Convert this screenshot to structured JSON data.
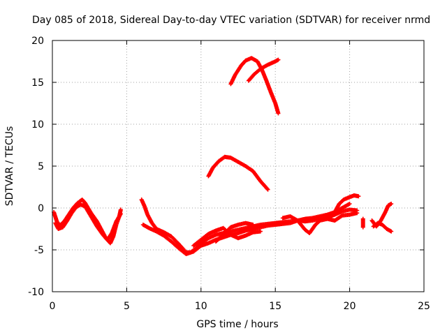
{
  "chart_data": {
    "type": "scatter",
    "title": "Day 085 of 2018, Sidereal Day-to-day VTEC variation (SDTVAR) for receiver nrmd",
    "xlabel": "GPS time / hours",
    "ylabel": "SDTVAR / TECUs",
    "xlim": [
      0,
      25
    ],
    "ylim": [
      -10,
      20
    ],
    "xticks": [
      0,
      5,
      10,
      15,
      20,
      25
    ],
    "yticks": [
      -10,
      -5,
      0,
      5,
      10,
      15,
      20
    ],
    "grid": true,
    "marker": "plus",
    "color": "#ff0000",
    "segments": [
      {
        "points": [
          [
            0.1,
            -0.5
          ],
          [
            0.3,
            -1.6
          ],
          [
            0.5,
            -2.1
          ],
          [
            0.8,
            -1.6
          ],
          [
            1.1,
            -0.8
          ],
          [
            1.4,
            0.0
          ],
          [
            1.7,
            0.6
          ],
          [
            2.0,
            1.0
          ],
          [
            2.2,
            0.6
          ],
          [
            2.6,
            -0.6
          ],
          [
            3.0,
            -1.6
          ],
          [
            3.3,
            -2.6
          ],
          [
            3.6,
            -3.6
          ],
          [
            3.9,
            -4.2
          ],
          [
            4.1,
            -3.4
          ],
          [
            4.3,
            -2.0
          ],
          [
            4.5,
            -1.0
          ],
          [
            4.6,
            -0.2
          ]
        ]
      },
      {
        "points": [
          [
            0.2,
            -1.8
          ],
          [
            0.4,
            -2.5
          ],
          [
            0.7,
            -2.3
          ],
          [
            1.0,
            -1.5
          ],
          [
            1.3,
            -0.6
          ],
          [
            1.6,
            0.1
          ],
          [
            1.9,
            0.4
          ],
          [
            2.2,
            0.2
          ],
          [
            2.6,
            -1.0
          ],
          [
            3.0,
            -2.2
          ],
          [
            3.4,
            -3.2
          ],
          [
            3.7,
            -3.8
          ],
          [
            4.0,
            -3.0
          ],
          [
            4.3,
            -1.6
          ],
          [
            4.6,
            -0.7
          ]
        ]
      },
      {
        "points": [
          [
            6.0,
            1.0
          ],
          [
            6.2,
            0.2
          ],
          [
            6.4,
            -0.8
          ],
          [
            6.7,
            -1.8
          ],
          [
            7.0,
            -2.5
          ],
          [
            7.5,
            -2.9
          ],
          [
            8.0,
            -3.4
          ],
          [
            8.5,
            -4.3
          ],
          [
            9.0,
            -5.3
          ],
          [
            9.3,
            -5.3
          ],
          [
            9.6,
            -4.9
          ],
          [
            10.0,
            -4.2
          ],
          [
            10.5,
            -3.6
          ],
          [
            11.0,
            -3.2
          ],
          [
            11.5,
            -3.0
          ],
          [
            12.0,
            -2.8
          ],
          [
            12.5,
            -2.6
          ],
          [
            13.0,
            -2.4
          ],
          [
            13.5,
            -2.2
          ],
          [
            14.0,
            -2.0
          ],
          [
            14.5,
            -1.9
          ],
          [
            15.0,
            -1.8
          ],
          [
            15.5,
            -1.7
          ],
          [
            16.0,
            -1.6
          ],
          [
            16.5,
            -1.5
          ],
          [
            17.0,
            -1.3
          ],
          [
            17.5,
            -1.2
          ],
          [
            18.0,
            -1.0
          ],
          [
            18.5,
            -0.8
          ],
          [
            19.0,
            -0.5
          ],
          [
            19.5,
            0.0
          ],
          [
            20.0,
            0.5
          ]
        ]
      },
      {
        "points": [
          [
            6.1,
            -2.0
          ],
          [
            6.5,
            -2.4
          ],
          [
            7.0,
            -2.8
          ],
          [
            7.5,
            -3.3
          ],
          [
            8.0,
            -4.0
          ],
          [
            8.5,
            -4.8
          ],
          [
            9.0,
            -5.5
          ],
          [
            9.5,
            -5.2
          ],
          [
            10.0,
            -4.5
          ],
          [
            10.5,
            -4.2
          ],
          [
            11.0,
            -3.8
          ],
          [
            11.5,
            -3.5
          ],
          [
            12.0,
            -3.2
          ],
          [
            12.5,
            -3.0
          ],
          [
            13.0,
            -2.7
          ],
          [
            13.5,
            -2.5
          ],
          [
            14.0,
            -2.3
          ],
          [
            14.5,
            -2.1
          ],
          [
            15.0,
            -2.0
          ],
          [
            15.5,
            -1.9
          ],
          [
            16.0,
            -1.8
          ],
          [
            16.5,
            -1.5
          ],
          [
            17.0,
            -1.6
          ],
          [
            17.5,
            -1.5
          ],
          [
            18.0,
            -1.3
          ],
          [
            18.5,
            -1.1
          ],
          [
            19.0,
            -0.8
          ],
          [
            19.5,
            -0.4
          ],
          [
            20.0,
            -0.2
          ],
          [
            20.5,
            -0.3
          ]
        ]
      },
      {
        "points": [
          [
            9.5,
            -4.5
          ],
          [
            10.0,
            -3.8
          ],
          [
            10.5,
            -3.1
          ],
          [
            11.0,
            -2.7
          ],
          [
            11.5,
            -2.4
          ],
          [
            12.0,
            -3.2
          ],
          [
            12.5,
            -3.6
          ],
          [
            13.0,
            -3.3
          ],
          [
            13.5,
            -2.9
          ],
          [
            14.0,
            -2.8
          ]
        ]
      },
      {
        "points": [
          [
            11.0,
            -4.0
          ],
          [
            11.5,
            -3.2
          ],
          [
            12.0,
            -2.3
          ],
          [
            12.5,
            -2.0
          ],
          [
            13.0,
            -1.8
          ],
          [
            13.5,
            -2.0
          ]
        ]
      },
      {
        "points": [
          [
            15.5,
            -1.2
          ],
          [
            16.0,
            -1.0
          ],
          [
            16.5,
            -1.5
          ],
          [
            17.0,
            -2.6
          ],
          [
            17.3,
            -3.0
          ],
          [
            17.7,
            -2.0
          ],
          [
            18.0,
            -1.5
          ],
          [
            18.5,
            -1.3
          ],
          [
            19.0,
            -1.5
          ],
          [
            19.5,
            -0.9
          ],
          [
            20.0,
            -0.8
          ],
          [
            20.5,
            -0.6
          ]
        ]
      },
      {
        "points": [
          [
            19.0,
            -0.5
          ],
          [
            19.3,
            0.5
          ],
          [
            19.6,
            1.0
          ],
          [
            20.0,
            1.3
          ],
          [
            20.3,
            1.5
          ],
          [
            20.6,
            1.4
          ]
        ]
      },
      {
        "points": [
          [
            20.9,
            -2.3
          ],
          [
            20.9,
            -1.3
          ]
        ]
      },
      {
        "points": [
          [
            21.5,
            -1.5
          ],
          [
            21.8,
            -2.2
          ],
          [
            22.1,
            -1.5
          ],
          [
            22.4,
            -0.5
          ],
          [
            22.6,
            0.3
          ],
          [
            22.8,
            0.5
          ]
        ]
      },
      {
        "points": [
          [
            21.6,
            -2.2
          ],
          [
            21.9,
            -1.8
          ],
          [
            22.2,
            -2.0
          ],
          [
            22.5,
            -2.5
          ],
          [
            22.8,
            -2.8
          ]
        ]
      },
      {
        "points": [
          [
            10.5,
            3.8
          ],
          [
            10.8,
            4.8
          ],
          [
            11.2,
            5.6
          ],
          [
            11.6,
            6.1
          ],
          [
            12.0,
            6.0
          ],
          [
            12.5,
            5.5
          ],
          [
            13.0,
            5.0
          ],
          [
            13.5,
            4.4
          ],
          [
            14.0,
            3.2
          ],
          [
            14.5,
            2.2
          ]
        ]
      },
      {
        "points": [
          [
            12.0,
            14.8
          ],
          [
            12.3,
            15.9
          ],
          [
            12.7,
            17.0
          ],
          [
            13.0,
            17.6
          ],
          [
            13.4,
            17.9
          ],
          [
            13.8,
            17.5
          ],
          [
            14.1,
            16.5
          ],
          [
            14.4,
            15.2
          ],
          [
            14.7,
            13.8
          ],
          [
            15.0,
            12.5
          ],
          [
            15.2,
            11.3
          ]
        ]
      },
      {
        "points": [
          [
            13.2,
            15.2
          ],
          [
            13.6,
            16.0
          ],
          [
            14.0,
            16.6
          ],
          [
            14.5,
            17.1
          ],
          [
            15.0,
            17.5
          ],
          [
            15.2,
            17.7
          ]
        ]
      }
    ]
  }
}
